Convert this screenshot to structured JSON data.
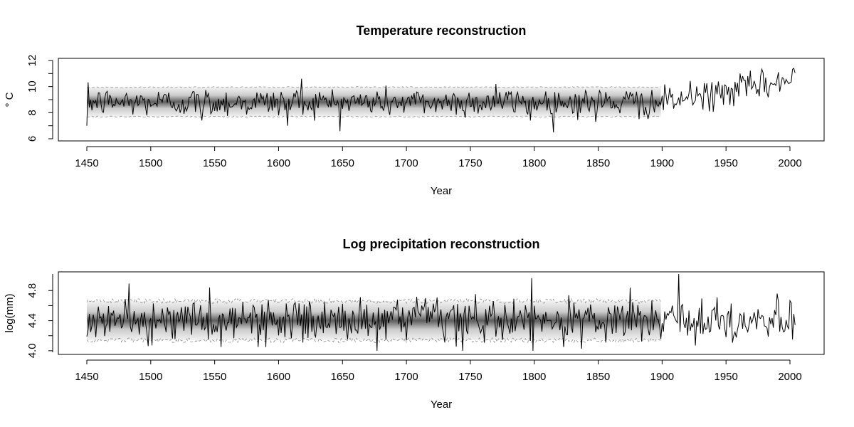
{
  "colors": {
    "line": "#000000",
    "band_dark": "#4a4a4a",
    "band_light": "#e6e6e6",
    "interval_dashed": "#8c8c8c"
  },
  "chart_data": [
    {
      "type": "line",
      "title": "Temperature reconstruction",
      "xlabel": "Year",
      "ylabel": "° C",
      "xlim": [
        1450,
        2004
      ],
      "ylim": [
        6,
        12
      ],
      "x_ticks": [
        "1450",
        "1500",
        "1550",
        "1600",
        "1650",
        "1700",
        "1750",
        "1800",
        "1850",
        "1900",
        "1950",
        "2000"
      ],
      "y_ticks": [
        "6",
        "8",
        "10",
        "12"
      ],
      "y_minor_ticks": [
        7,
        9,
        11
      ],
      "grid": false,
      "series": [
        {
          "role": "reconstruction",
          "x_range": [
            1450,
            1899
          ],
          "mean": 8.8,
          "noise_sd": 0.55,
          "interval": [
            7.7,
            9.95
          ],
          "notable_points": [
            [
              1450,
              7.0
            ],
            [
              1540,
              7.4
            ],
            [
              1607,
              7.0
            ],
            [
              1618,
              10.6
            ],
            [
              1770,
              10.2
            ],
            [
              1797,
              7.4
            ],
            [
              1848,
              7.3
            ],
            [
              1882,
              7.5
            ]
          ]
        },
        {
          "role": "observed",
          "x_range": [
            1900,
            2004
          ],
          "trend": [
            [
              1900,
              8.8
            ],
            [
              1925,
              9.2
            ],
            [
              1950,
              9.6
            ],
            [
              1975,
              10.0
            ],
            [
              2004,
              10.5
            ]
          ],
          "noise_sd": 0.55,
          "notable_points": [
            [
              1901,
              8.2
            ],
            [
              1937,
              8.1
            ],
            [
              1961,
              11.0
            ],
            [
              1991,
              11.1
            ],
            [
              2003,
              11.4
            ]
          ]
        }
      ]
    },
    {
      "type": "line",
      "title": "Log precipitation reconstruction",
      "xlabel": "Year",
      "ylabel": "log(mm)",
      "xlim": [
        1450,
        2004
      ],
      "ylim": [
        3.98,
        5.02
      ],
      "x_ticks": [
        "1450",
        "1500",
        "1550",
        "1600",
        "1650",
        "1700",
        "1750",
        "1800",
        "1850",
        "1900",
        "1950",
        "2000"
      ],
      "y_ticks": [
        "4.0",
        "4.4",
        "4.8"
      ],
      "y_minor_ticks": [
        4.2,
        4.6
      ],
      "grid": false,
      "series": [
        {
          "role": "reconstruction",
          "x_range": [
            1450,
            1899
          ],
          "mean": 4.4,
          "noise_sd": 0.14,
          "interval": [
            4.14,
            4.66
          ],
          "notable_points": [
            [
              1546,
              4.84
            ],
            [
              1555,
              4.05
            ],
            [
              1799,
              4.0
            ],
            [
              1823,
              4.05
            ]
          ]
        },
        {
          "role": "observed",
          "x_range": [
            1900,
            2004
          ],
          "trend": [
            [
              1900,
              4.4
            ],
            [
              2004,
              4.4
            ]
          ],
          "noise_sd": 0.13,
          "notable_points": [
            [
              1913,
              5.02
            ],
            [
              1914,
              4.25
            ],
            [
              1926,
              4.07
            ],
            [
              1990,
              4.76
            ],
            [
              2002,
              4.15
            ]
          ]
        }
      ]
    }
  ]
}
